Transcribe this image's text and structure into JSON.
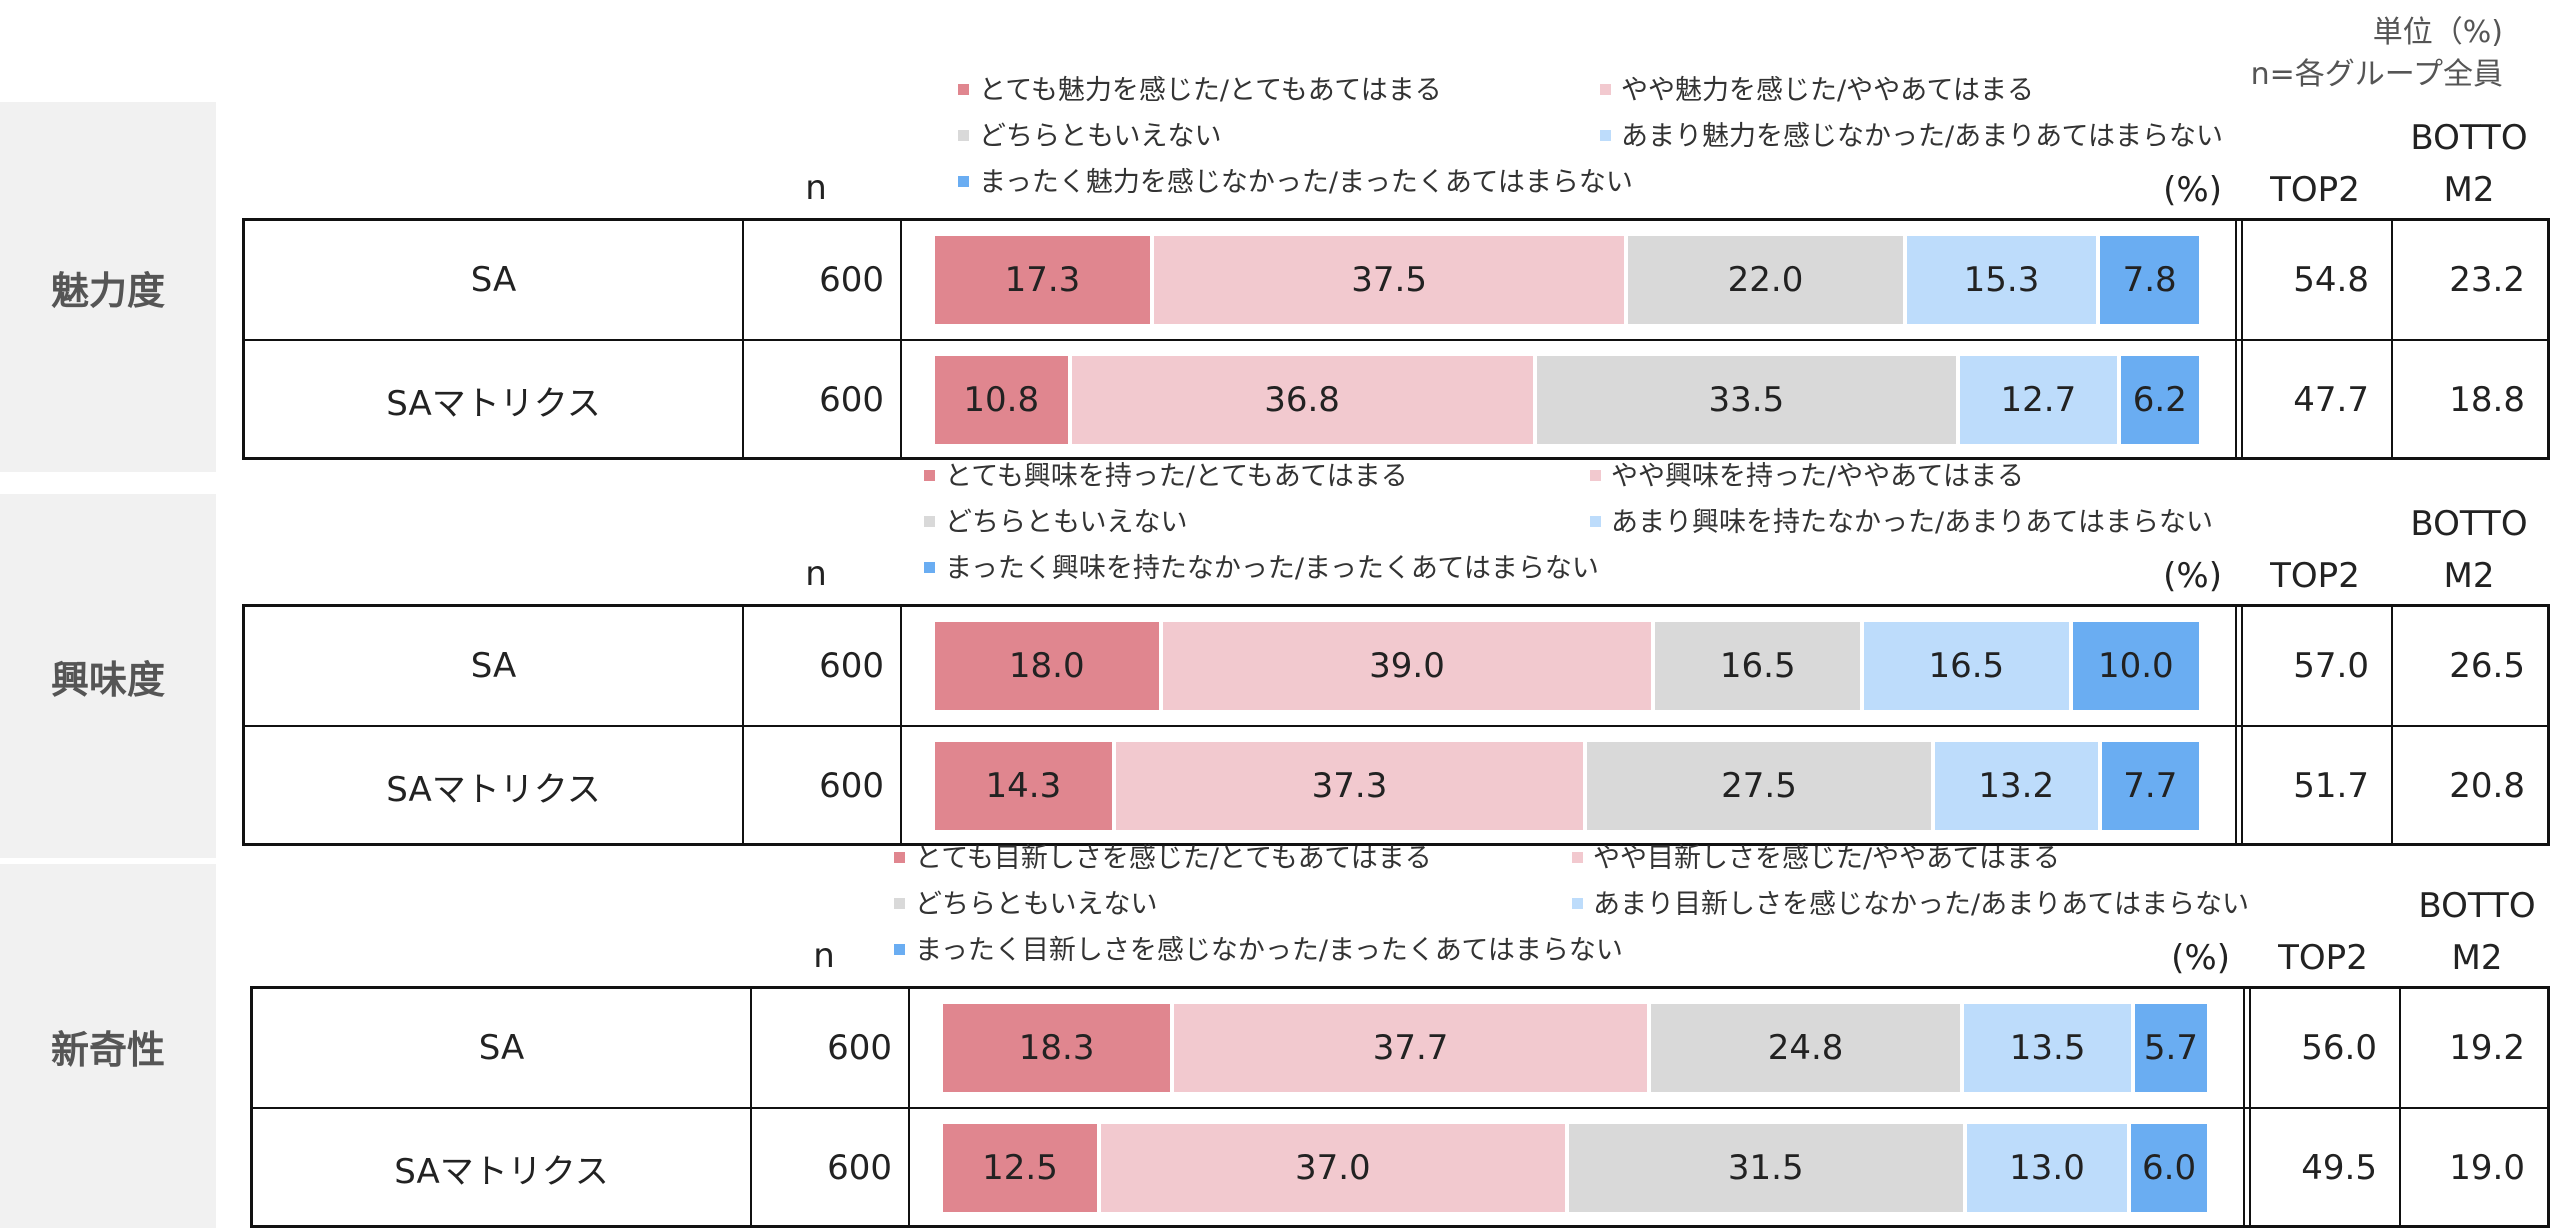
{
  "unit_label": "単位（%)",
  "n_note": "n=各グループ全員",
  "headers": {
    "n": "n",
    "percent": "(%)",
    "top2": "TOP2",
    "bottom2_line1": "BOTTO",
    "bottom2_line2": "M2"
  },
  "colors": [
    "#e0868f",
    "#f2c9cf",
    "#d9d9d9",
    "#bddcfb",
    "#6aadf2"
  ],
  "chart_data": [
    {
      "type": "bar",
      "stacked": true,
      "orientation": "horizontal",
      "title": "魅力度",
      "legend": [
        "とても魅力を感じた/とてもあてはまる",
        "やや魅力を感じた/ややあてはまる",
        "どちらともいえない",
        "あまり魅力を感じなかった/あまりあてはまらない",
        "まったく魅力を感じなかった/まったくあてはまらない"
      ],
      "rows": [
        {
          "label": "SA",
          "n": "600",
          "values": [
            17.3,
            37.5,
            22.0,
            15.3,
            7.8
          ],
          "top2": "54.8",
          "bottom2": "23.2"
        },
        {
          "label": "SAマトリクス",
          "n": "600",
          "values": [
            10.8,
            36.8,
            33.5,
            12.7,
            6.2
          ],
          "top2": "47.7",
          "bottom2": "18.8"
        }
      ]
    },
    {
      "type": "bar",
      "stacked": true,
      "orientation": "horizontal",
      "title": "興味度",
      "legend": [
        "とても興味を持った/とてもあてはまる",
        "やや興味を持った/ややあてはまる",
        "どちらともいえない",
        "あまり興味を持たなかった/あまりあてはまらない",
        "まったく興味を持たなかった/まったくあてはまらない"
      ],
      "rows": [
        {
          "label": "SA",
          "n": "600",
          "values": [
            18.0,
            39.0,
            16.5,
            16.5,
            10.0
          ],
          "top2": "57.0",
          "bottom2": "26.5"
        },
        {
          "label": "SAマトリクス",
          "n": "600",
          "values": [
            14.3,
            37.3,
            27.5,
            13.2,
            7.7
          ],
          "top2": "51.7",
          "bottom2": "20.8"
        }
      ]
    },
    {
      "type": "bar",
      "stacked": true,
      "orientation": "horizontal",
      "title": "新奇性",
      "legend": [
        "とても目新しさを感じた/とてもあてはまる",
        "やや目新しさを感じた/ややあてはまる",
        "どちらともいえない",
        "あまり目新しさを感じなかった/あまりあてはまらない",
        "まったく目新しさを感じなかった/まったくあてはまらない"
      ],
      "rows": [
        {
          "label": "SA",
          "n": "600",
          "values": [
            18.3,
            37.7,
            24.8,
            13.5,
            5.7
          ],
          "top2": "56.0",
          "bottom2": "19.2"
        },
        {
          "label": "SAマトリクス",
          "n": "600",
          "values": [
            12.5,
            37.0,
            31.5,
            13.0,
            6.0
          ],
          "top2": "49.5",
          "bottom2": "19.0"
        }
      ]
    }
  ]
}
